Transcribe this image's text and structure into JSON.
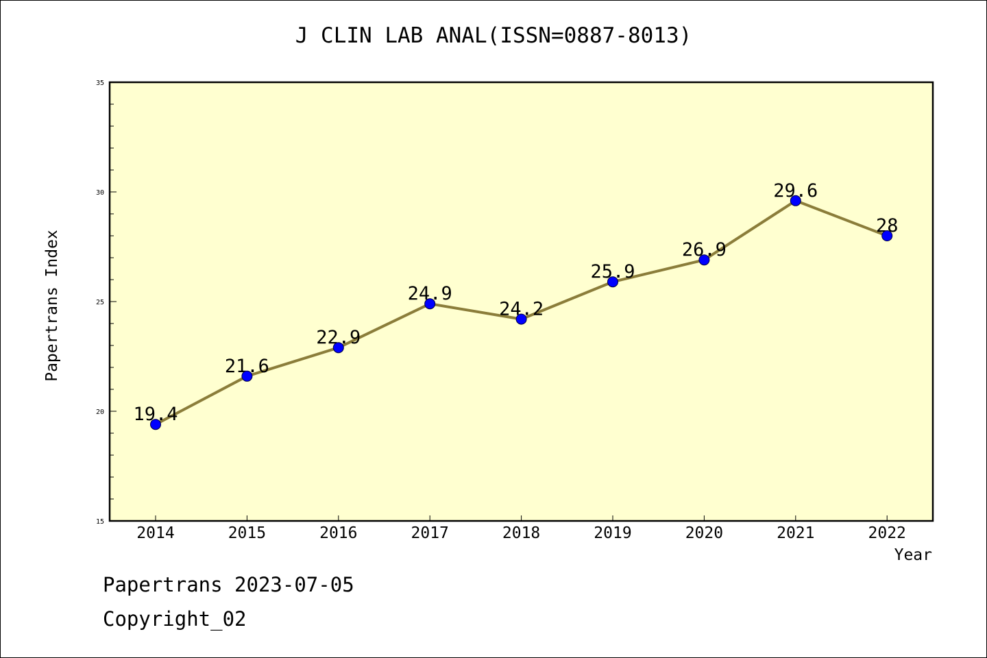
{
  "chart_data": {
    "type": "line",
    "title": "J CLIN LAB ANAL(ISSN=0887-8013)",
    "xlabel": "Year",
    "ylabel": "Papertrans Index",
    "categories": [
      "2014",
      "2015",
      "2016",
      "2017",
      "2018",
      "2019",
      "2020",
      "2021",
      "2022"
    ],
    "series": [
      {
        "values": [
          19.4,
          21.6,
          22.9,
          24.9,
          24.2,
          25.9,
          26.9,
          29.6,
          28
        ],
        "data_labels": [
          "19.4",
          "21.6",
          "22.9",
          "24.9",
          "24.2",
          "25.9",
          "26.9",
          "29.6",
          "28"
        ]
      }
    ],
    "ylim": [
      15,
      35
    ],
    "yticks": [
      "15",
      "20",
      "25",
      "30",
      "35"
    ],
    "grid": false,
    "colors": {
      "line": "#8B7D3A",
      "marker": "#0000FF",
      "plot_background": "#FFFFD0"
    }
  },
  "footer": {
    "line1": "Papertrans 2023-07-05",
    "line2": "Copyright_02"
  }
}
